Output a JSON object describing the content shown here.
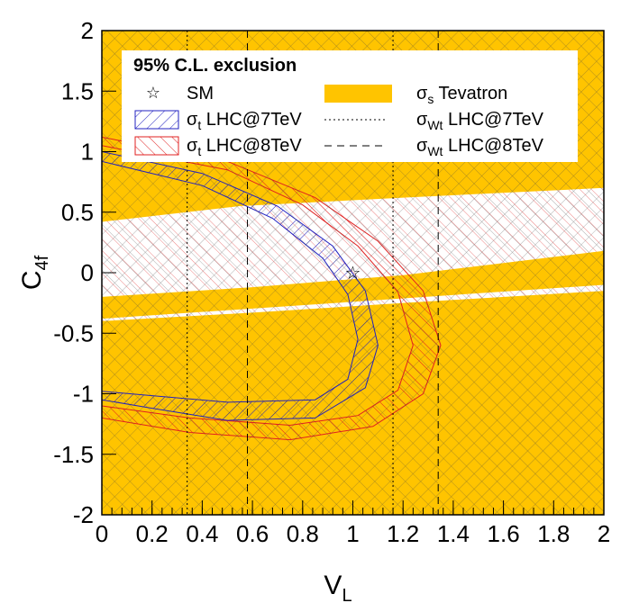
{
  "chart_data": {
    "type": "contour",
    "xlabel": "V",
    "xlabel_sub": "L",
    "ylabel": "C",
    "ylabel_sub": "4f",
    "xlim": [
      0,
      2
    ],
    "ylim": [
      -2,
      2
    ],
    "x_ticks": [
      "0",
      "0.2",
      "0.4",
      "0.6",
      "0.8",
      "1",
      "1.2",
      "1.4",
      "1.6",
      "1.8",
      "2"
    ],
    "y_ticks": [
      "-2",
      "-1.5",
      "-1",
      "-0.5",
      "0",
      "0.5",
      "1",
      "1.5",
      "2"
    ],
    "legend": {
      "title": "95% C.L. exclusion",
      "entries": [
        {
          "symbol": "☆",
          "label": "SM",
          "sub": "",
          "label_rest": ""
        },
        {
          "symbol": "",
          "label": "σ",
          "sub": "s",
          "label_rest": " Tevatron"
        },
        {
          "symbol": "",
          "label": "σ",
          "sub": "t",
          "label_rest": " LHC@7TeV"
        },
        {
          "symbol": "",
          "label": "σ",
          "sub": "Wt",
          "label_rest": " LHC@7TeV"
        },
        {
          "symbol": "",
          "label": "σ",
          "sub": "t",
          "label_rest": " LHC@8TeV"
        },
        {
          "symbol": "",
          "label": "σ",
          "sub": "Wt",
          "label_rest": " LHC@8TeV"
        }
      ]
    },
    "sm_point": {
      "x": 1.0,
      "y": 0.0,
      "label": "☆"
    },
    "tevatron_allowed_bands": [
      {
        "name": "upper band",
        "points": [
          [
            0.0,
            0.42
          ],
          [
            0.55,
            0.55
          ],
          [
            1.2,
            0.62
          ],
          [
            2.0,
            0.7
          ],
          [
            2.0,
            0.18
          ],
          [
            1.2,
            -0.02
          ],
          [
            0.6,
            -0.12
          ],
          [
            0.0,
            -0.2
          ]
        ]
      },
      {
        "name": "lower band",
        "points": [
          [
            0.0,
            -0.4
          ],
          [
            0.6,
            -0.33
          ],
          [
            1.2,
            -0.25
          ],
          [
            2.0,
            -0.15
          ],
          [
            2.0,
            -0.1
          ],
          [
            0.0,
            -0.38
          ]
        ]
      }
    ],
    "wt_lhc7_excluded_vl_max": 0.34,
    "wt_lhc7_excluded_vl_min": 1.16,
    "wt_lhc8_excluded_vl_max": 0.58,
    "wt_lhc8_excluded_vl_min": 1.34,
    "lhc7_t_channel_allowed_outer": [
      [
        0.0,
        1.0
      ],
      [
        0.4,
        0.82
      ],
      [
        0.7,
        0.55
      ],
      [
        0.92,
        0.22
      ],
      [
        1.05,
        -0.15
      ],
      [
        1.1,
        -0.6
      ],
      [
        1.05,
        -0.95
      ],
      [
        0.85,
        -1.2
      ],
      [
        0.5,
        -1.22
      ],
      [
        0.2,
        -1.12
      ],
      [
        0.0,
        -1.05
      ]
    ],
    "lhc7_t_channel_allowed_inner": [
      [
        0.0,
        0.92
      ],
      [
        0.4,
        0.72
      ],
      [
        0.68,
        0.45
      ],
      [
        0.88,
        0.12
      ],
      [
        0.98,
        -0.18
      ],
      [
        1.02,
        -0.55
      ],
      [
        0.98,
        -0.88
      ],
      [
        0.85,
        -1.05
      ],
      [
        0.5,
        -1.07
      ],
      [
        0.0,
        -0.98
      ]
    ],
    "lhc8_t_channel_allowed_outer": [
      [
        0.0,
        1.12
      ],
      [
        0.5,
        0.92
      ],
      [
        0.85,
        0.62
      ],
      [
        1.1,
        0.26
      ],
      [
        1.28,
        -0.15
      ],
      [
        1.35,
        -0.6
      ],
      [
        1.28,
        -1.0
      ],
      [
        1.08,
        -1.27
      ],
      [
        0.75,
        -1.38
      ],
      [
        0.35,
        -1.32
      ],
      [
        0.0,
        -1.2
      ]
    ],
    "lhc8_t_channel_allowed_inner": [
      [
        0.0,
        1.05
      ],
      [
        0.5,
        0.85
      ],
      [
        0.8,
        0.56
      ],
      [
        1.02,
        0.22
      ],
      [
        1.18,
        -0.16
      ],
      [
        1.24,
        -0.6
      ],
      [
        1.18,
        -0.97
      ],
      [
        1.02,
        -1.18
      ],
      [
        0.75,
        -1.26
      ],
      [
        0.35,
        -1.2
      ],
      [
        0.0,
        -1.1
      ]
    ]
  }
}
